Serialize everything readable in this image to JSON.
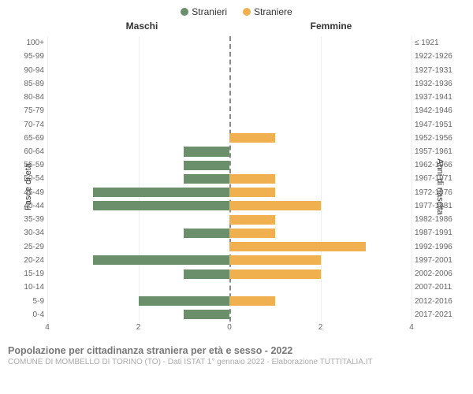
{
  "legend": {
    "male_label": "Stranieri",
    "female_label": "Straniere",
    "male_color": "#6b8e6b",
    "female_color": "#f0b050"
  },
  "headers": {
    "left": "Maschi",
    "right": "Femmine"
  },
  "axes": {
    "left_label": "Fasce di età",
    "right_label": "Anni di nascita"
  },
  "chart": {
    "type": "population-pyramid",
    "xlim": 4,
    "xticks_left": [
      4,
      2,
      0
    ],
    "xticks_right": [
      0,
      2,
      4
    ],
    "bar_color_male": "#6b8e6b",
    "bar_color_female": "#f0b050",
    "background_color": "#ffffff",
    "grid_color": "#eeeeee",
    "center_line_color": "#888888",
    "rows": [
      {
        "age": "100+",
        "birth": "≤ 1921",
        "m": 0,
        "f": 0
      },
      {
        "age": "95-99",
        "birth": "1922-1926",
        "m": 0,
        "f": 0
      },
      {
        "age": "90-94",
        "birth": "1927-1931",
        "m": 0,
        "f": 0
      },
      {
        "age": "85-89",
        "birth": "1932-1936",
        "m": 0,
        "f": 0
      },
      {
        "age": "80-84",
        "birth": "1937-1941",
        "m": 0,
        "f": 0
      },
      {
        "age": "75-79",
        "birth": "1942-1946",
        "m": 0,
        "f": 0
      },
      {
        "age": "70-74",
        "birth": "1947-1951",
        "m": 0,
        "f": 0
      },
      {
        "age": "65-69",
        "birth": "1952-1956",
        "m": 0,
        "f": 1
      },
      {
        "age": "60-64",
        "birth": "1957-1961",
        "m": 1,
        "f": 0
      },
      {
        "age": "55-59",
        "birth": "1962-1966",
        "m": 1,
        "f": 0
      },
      {
        "age": "50-54",
        "birth": "1967-1971",
        "m": 1,
        "f": 1
      },
      {
        "age": "45-49",
        "birth": "1972-1976",
        "m": 3,
        "f": 1
      },
      {
        "age": "40-44",
        "birth": "1977-1981",
        "m": 3,
        "f": 2
      },
      {
        "age": "35-39",
        "birth": "1982-1986",
        "m": 0,
        "f": 1
      },
      {
        "age": "30-34",
        "birth": "1987-1991",
        "m": 1,
        "f": 1
      },
      {
        "age": "25-29",
        "birth": "1992-1996",
        "m": 0,
        "f": 3
      },
      {
        "age": "20-24",
        "birth": "1997-2001",
        "m": 3,
        "f": 2
      },
      {
        "age": "15-19",
        "birth": "2002-2006",
        "m": 1,
        "f": 2
      },
      {
        "age": "10-14",
        "birth": "2007-2011",
        "m": 0,
        "f": 0
      },
      {
        "age": "5-9",
        "birth": "2012-2016",
        "m": 2,
        "f": 1
      },
      {
        "age": "0-4",
        "birth": "2017-2021",
        "m": 1,
        "f": 0
      }
    ]
  },
  "footer": {
    "title": "Popolazione per cittadinanza straniera per età e sesso - 2022",
    "subtitle": "COMUNE DI MOMBELLO DI TORINO (TO) - Dati ISTAT 1° gennaio 2022 - Elaborazione TUTTITALIA.IT"
  }
}
